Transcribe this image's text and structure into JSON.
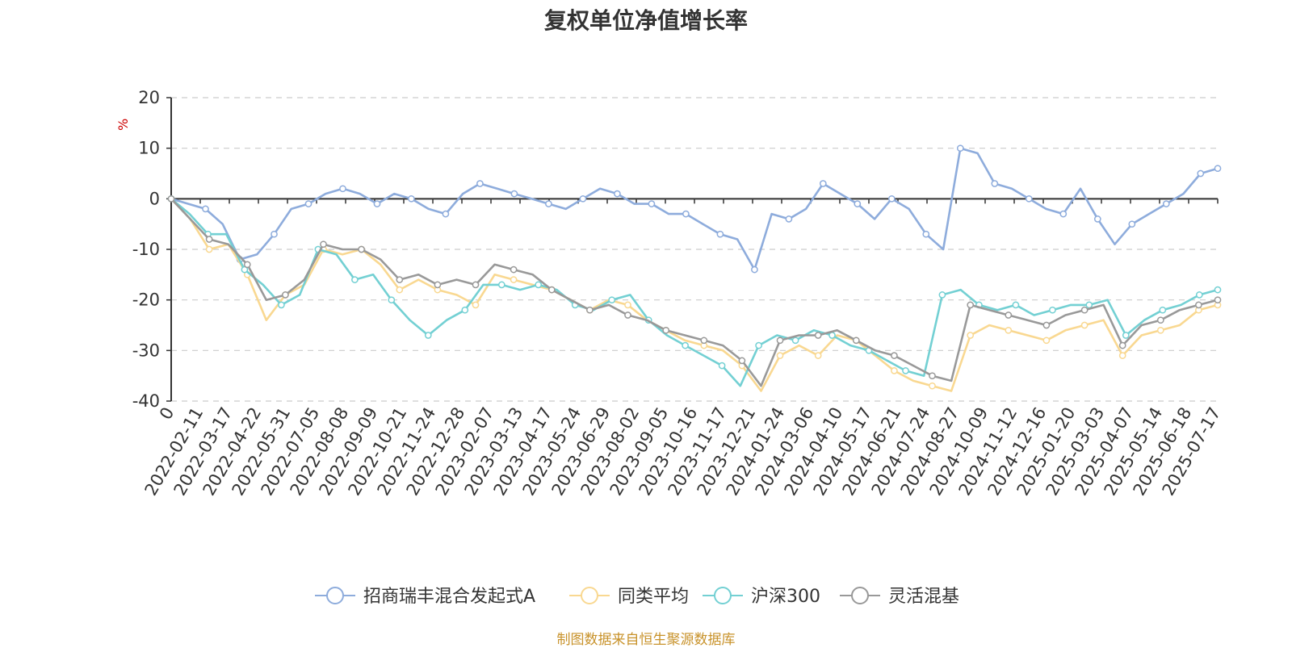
{
  "chart_data": {
    "type": "line",
    "title": "复权单位净值增长率",
    "ylabel": "%",
    "ylim": [
      -40,
      20
    ],
    "yticks": [
      20,
      10,
      0,
      -10,
      -20,
      -30,
      -40
    ],
    "grid": true,
    "legend_position": "bottom",
    "x_tick_labels": [
      "0",
      "2022-02-11",
      "2022-03-17",
      "2022-04-22",
      "2022-05-31",
      "2022-07-05",
      "2022-08-08",
      "2022-09-09",
      "2022-10-21",
      "2022-11-24",
      "2022-12-28",
      "2023-02-07",
      "2023-03-13",
      "2023-04-17",
      "2023-05-24",
      "2023-06-29",
      "2023-08-02",
      "2023-09-05",
      "2023-10-16",
      "2023-11-17",
      "2023-12-21",
      "2024-01-24",
      "2024-03-06",
      "2024-04-10",
      "2024-05-17",
      "2024-06-21",
      "2024-07-24",
      "2024-08-27",
      "2024-10-09",
      "2024-11-12",
      "2024-12-16",
      "2025-01-20",
      "2025-03-03",
      "2025-04-07",
      "2025-05-14",
      "2025-06-18",
      "2025-07-17"
    ],
    "series": [
      {
        "name": "招商瑞丰混合发起式A",
        "color": "#8eacdc",
        "values": [
          0,
          -1,
          -2,
          -5,
          -12,
          -11,
          -7,
          -2,
          -1,
          1,
          2,
          1,
          -1,
          1,
          0,
          -2,
          -3,
          1,
          3,
          2,
          1,
          0,
          -1,
          -2,
          0,
          2,
          1,
          -1,
          -1,
          -3,
          -3,
          -5,
          -7,
          -8,
          -14,
          -3,
          -4,
          -2,
          3,
          1,
          -1,
          -4,
          0,
          -2,
          -7,
          -10,
          10,
          9,
          3,
          2,
          0,
          -2,
          -3,
          2,
          -4,
          -9,
          -5,
          -3,
          -1,
          1,
          5,
          6
        ]
      },
      {
        "name": "同类平均",
        "color": "#f9d891",
        "values": [
          0,
          -4,
          -10,
          -9,
          -15,
          -24,
          -19,
          -17,
          -10,
          -11,
          -10,
          -13,
          -18,
          -16,
          -18,
          -19,
          -21,
          -15,
          -16,
          -17,
          -18,
          -20,
          -22,
          -20,
          -21,
          -24,
          -26,
          -28,
          -29,
          -30,
          -33,
          -38,
          -31,
          -29,
          -31,
          -27,
          -28,
          -31,
          -34,
          -36,
          -37,
          -38,
          -27,
          -25,
          -26,
          -27,
          -28,
          -26,
          -25,
          -24,
          -31,
          -27,
          -26,
          -25,
          -22,
          -21
        ]
      },
      {
        "name": "沪深300",
        "color": "#73d0d3",
        "values": [
          0,
          -3,
          -7,
          -7,
          -14,
          -17,
          -21,
          -19,
          -10,
          -11,
          -16,
          -15,
          -20,
          -24,
          -27,
          -24,
          -22,
          -17,
          -17,
          -18,
          -17,
          -18,
          -21,
          -22,
          -20,
          -19,
          -24,
          -27,
          -29,
          -31,
          -33,
          -37,
          -29,
          -27,
          -28,
          -26,
          -27,
          -29,
          -30,
          -32,
          -34,
          -35,
          -19,
          -18,
          -21,
          -22,
          -21,
          -23,
          -22,
          -21,
          -21,
          -20,
          -27,
          -24,
          -22,
          -21,
          -19,
          -18
        ]
      },
      {
        "name": "灵活混基",
        "color": "#999999",
        "values": [
          0,
          -4,
          -8,
          -9,
          -13,
          -20,
          -19,
          -16,
          -9,
          -10,
          -10,
          -12,
          -16,
          -15,
          -17,
          -16,
          -17,
          -13,
          -14,
          -15,
          -18,
          -20,
          -22,
          -21,
          -23,
          -24,
          -26,
          -27,
          -28,
          -29,
          -32,
          -37,
          -28,
          -27,
          -27,
          -26,
          -28,
          -30,
          -31,
          -33,
          -35,
          -36,
          -21,
          -22,
          -23,
          -24,
          -25,
          -23,
          -22,
          -21,
          -29,
          -25,
          -24,
          -22,
          -21,
          -20
        ]
      }
    ]
  },
  "source_note": "制图数据来自恒生聚源数据库"
}
